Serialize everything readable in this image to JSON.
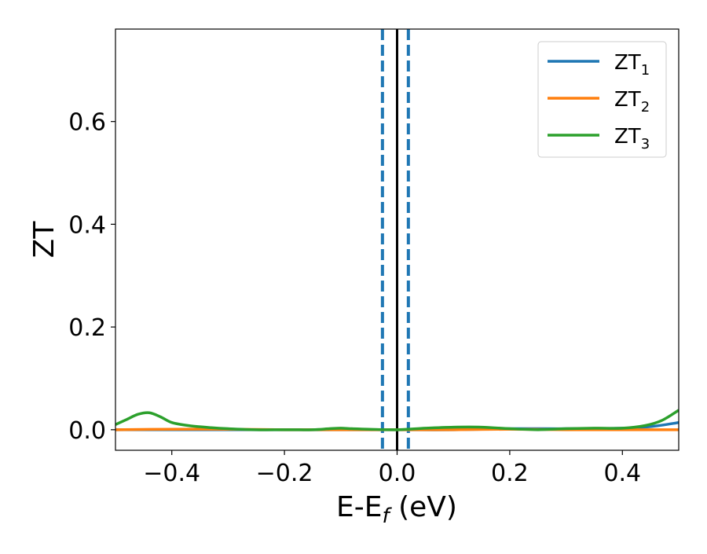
{
  "chart_data": {
    "type": "line",
    "xlabel": "E-E",
    "xlabel_sub": "f",
    "xlabel_unit": " (eV)",
    "ylabel": "ZT",
    "xlim": [
      -0.5,
      0.5
    ],
    "ylim": [
      -0.04,
      0.78
    ],
    "xticks": [
      -0.4,
      -0.2,
      0.0,
      0.2,
      0.4
    ],
    "xtick_labels": [
      "−0.4",
      "−0.2",
      "0.0",
      "0.2",
      "0.4"
    ],
    "yticks": [
      0.0,
      0.2,
      0.4,
      0.6
    ],
    "ytick_labels": [
      "0.0",
      "0.2",
      "0.4",
      "0.6"
    ],
    "grid": false,
    "legend_position": "top-right",
    "vertical_lines": [
      {
        "x": -0.026,
        "style": "dashed",
        "color": "#1f77b4"
      },
      {
        "x": 0.0,
        "style": "solid",
        "color": "#000000"
      },
      {
        "x": 0.02,
        "style": "dashed",
        "color": "#1f77b4"
      }
    ],
    "series": [
      {
        "name_base": "ZT",
        "name_sub": "1",
        "color": "#1f77b4",
        "x": [
          -0.5,
          -0.4,
          -0.3,
          -0.2,
          -0.1,
          0.0,
          0.1,
          0.2,
          0.3,
          0.4,
          0.45,
          0.5
        ],
        "y": [
          0.0,
          0.0,
          0.0,
          0.0,
          0.0,
          0.0,
          0.0,
          0.002,
          0.002,
          0.003,
          0.006,
          0.014
        ]
      },
      {
        "name_base": "ZT",
        "name_sub": "2",
        "color": "#ff7f0e",
        "x": [
          -0.5,
          -0.4,
          -0.3,
          -0.2,
          -0.1,
          0.0,
          0.1,
          0.2,
          0.3,
          0.4,
          0.5
        ],
        "y": [
          0.0,
          0.001,
          0.001,
          0.0,
          0.0,
          0.0,
          0.0,
          0.001,
          0.0,
          0.0,
          0.0
        ]
      },
      {
        "name_base": "ZT",
        "name_sub": "3",
        "color": "#2ca02c",
        "x": [
          -0.5,
          -0.48,
          -0.46,
          -0.44,
          -0.42,
          -0.4,
          -0.37,
          -0.33,
          -0.3,
          -0.25,
          -0.2,
          -0.15,
          -0.12,
          -0.1,
          -0.08,
          -0.05,
          0.0,
          0.05,
          0.1,
          0.15,
          0.2,
          0.25,
          0.3,
          0.35,
          0.4,
          0.44,
          0.47,
          0.5
        ],
        "y": [
          0.01,
          0.02,
          0.03,
          0.033,
          0.025,
          0.014,
          0.008,
          0.004,
          0.002,
          0.0,
          0.0,
          0.0,
          0.002,
          0.003,
          0.002,
          0.001,
          0.0,
          0.003,
          0.005,
          0.005,
          0.002,
          0.0,
          0.002,
          0.003,
          0.003,
          0.008,
          0.018,
          0.038
        ]
      }
    ]
  }
}
